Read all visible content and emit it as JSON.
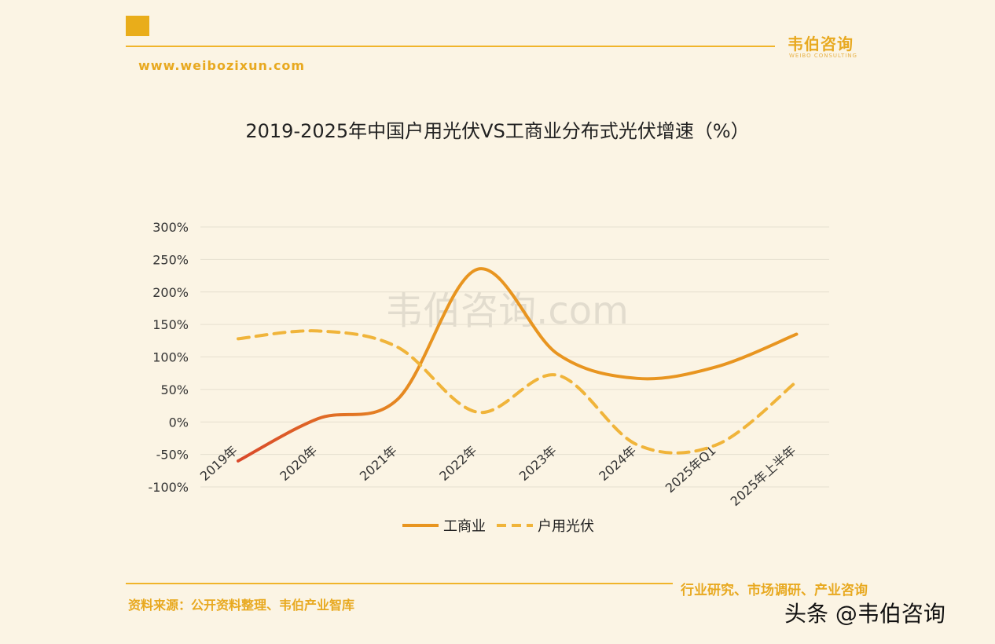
{
  "header": {
    "brand": "韦伯咨询",
    "brand_sub": "WEIBO CONSULTING",
    "url": "www.weibozixun.com"
  },
  "colors": {
    "accent": "#e9ad1a",
    "series_commercial": "#e89520",
    "series_commercial_start": "#d9482a",
    "series_household": "#f0b43a",
    "grid": "#e6dfcf",
    "background": "#fbf4e4"
  },
  "chart_data": {
    "type": "line",
    "title": "2019-2025年中国户用光伏VS工商业分布式光伏增速（%）",
    "categories": [
      "2019年",
      "2020年",
      "2021年",
      "2022年",
      "2023年",
      "2024年",
      "2025年Q1",
      "2025年上半年"
    ],
    "series": [
      {
        "name": "工商业",
        "style": "solid",
        "values": [
          -60,
          5,
          35,
          235,
          105,
          67,
          85,
          135
        ]
      },
      {
        "name": "户用光伏",
        "style": "dashed",
        "values": [
          128,
          140,
          115,
          15,
          72,
          -35,
          -35,
          62
        ]
      }
    ],
    "yticks": [
      "300%",
      "250%",
      "200%",
      "150%",
      "100%",
      "50%",
      "0%",
      "-50%",
      "-100%"
    ],
    "ylim": [
      -100,
      300
    ],
    "grid": true,
    "legend": "bottom-center",
    "watermark": "韦伯咨询.com"
  },
  "footer": {
    "source": "资料来源：公开资料整理、韦伯产业智库",
    "tagline": "行业研究、市场调研、产业咨询",
    "badge": "头条 @韦伯咨询"
  }
}
